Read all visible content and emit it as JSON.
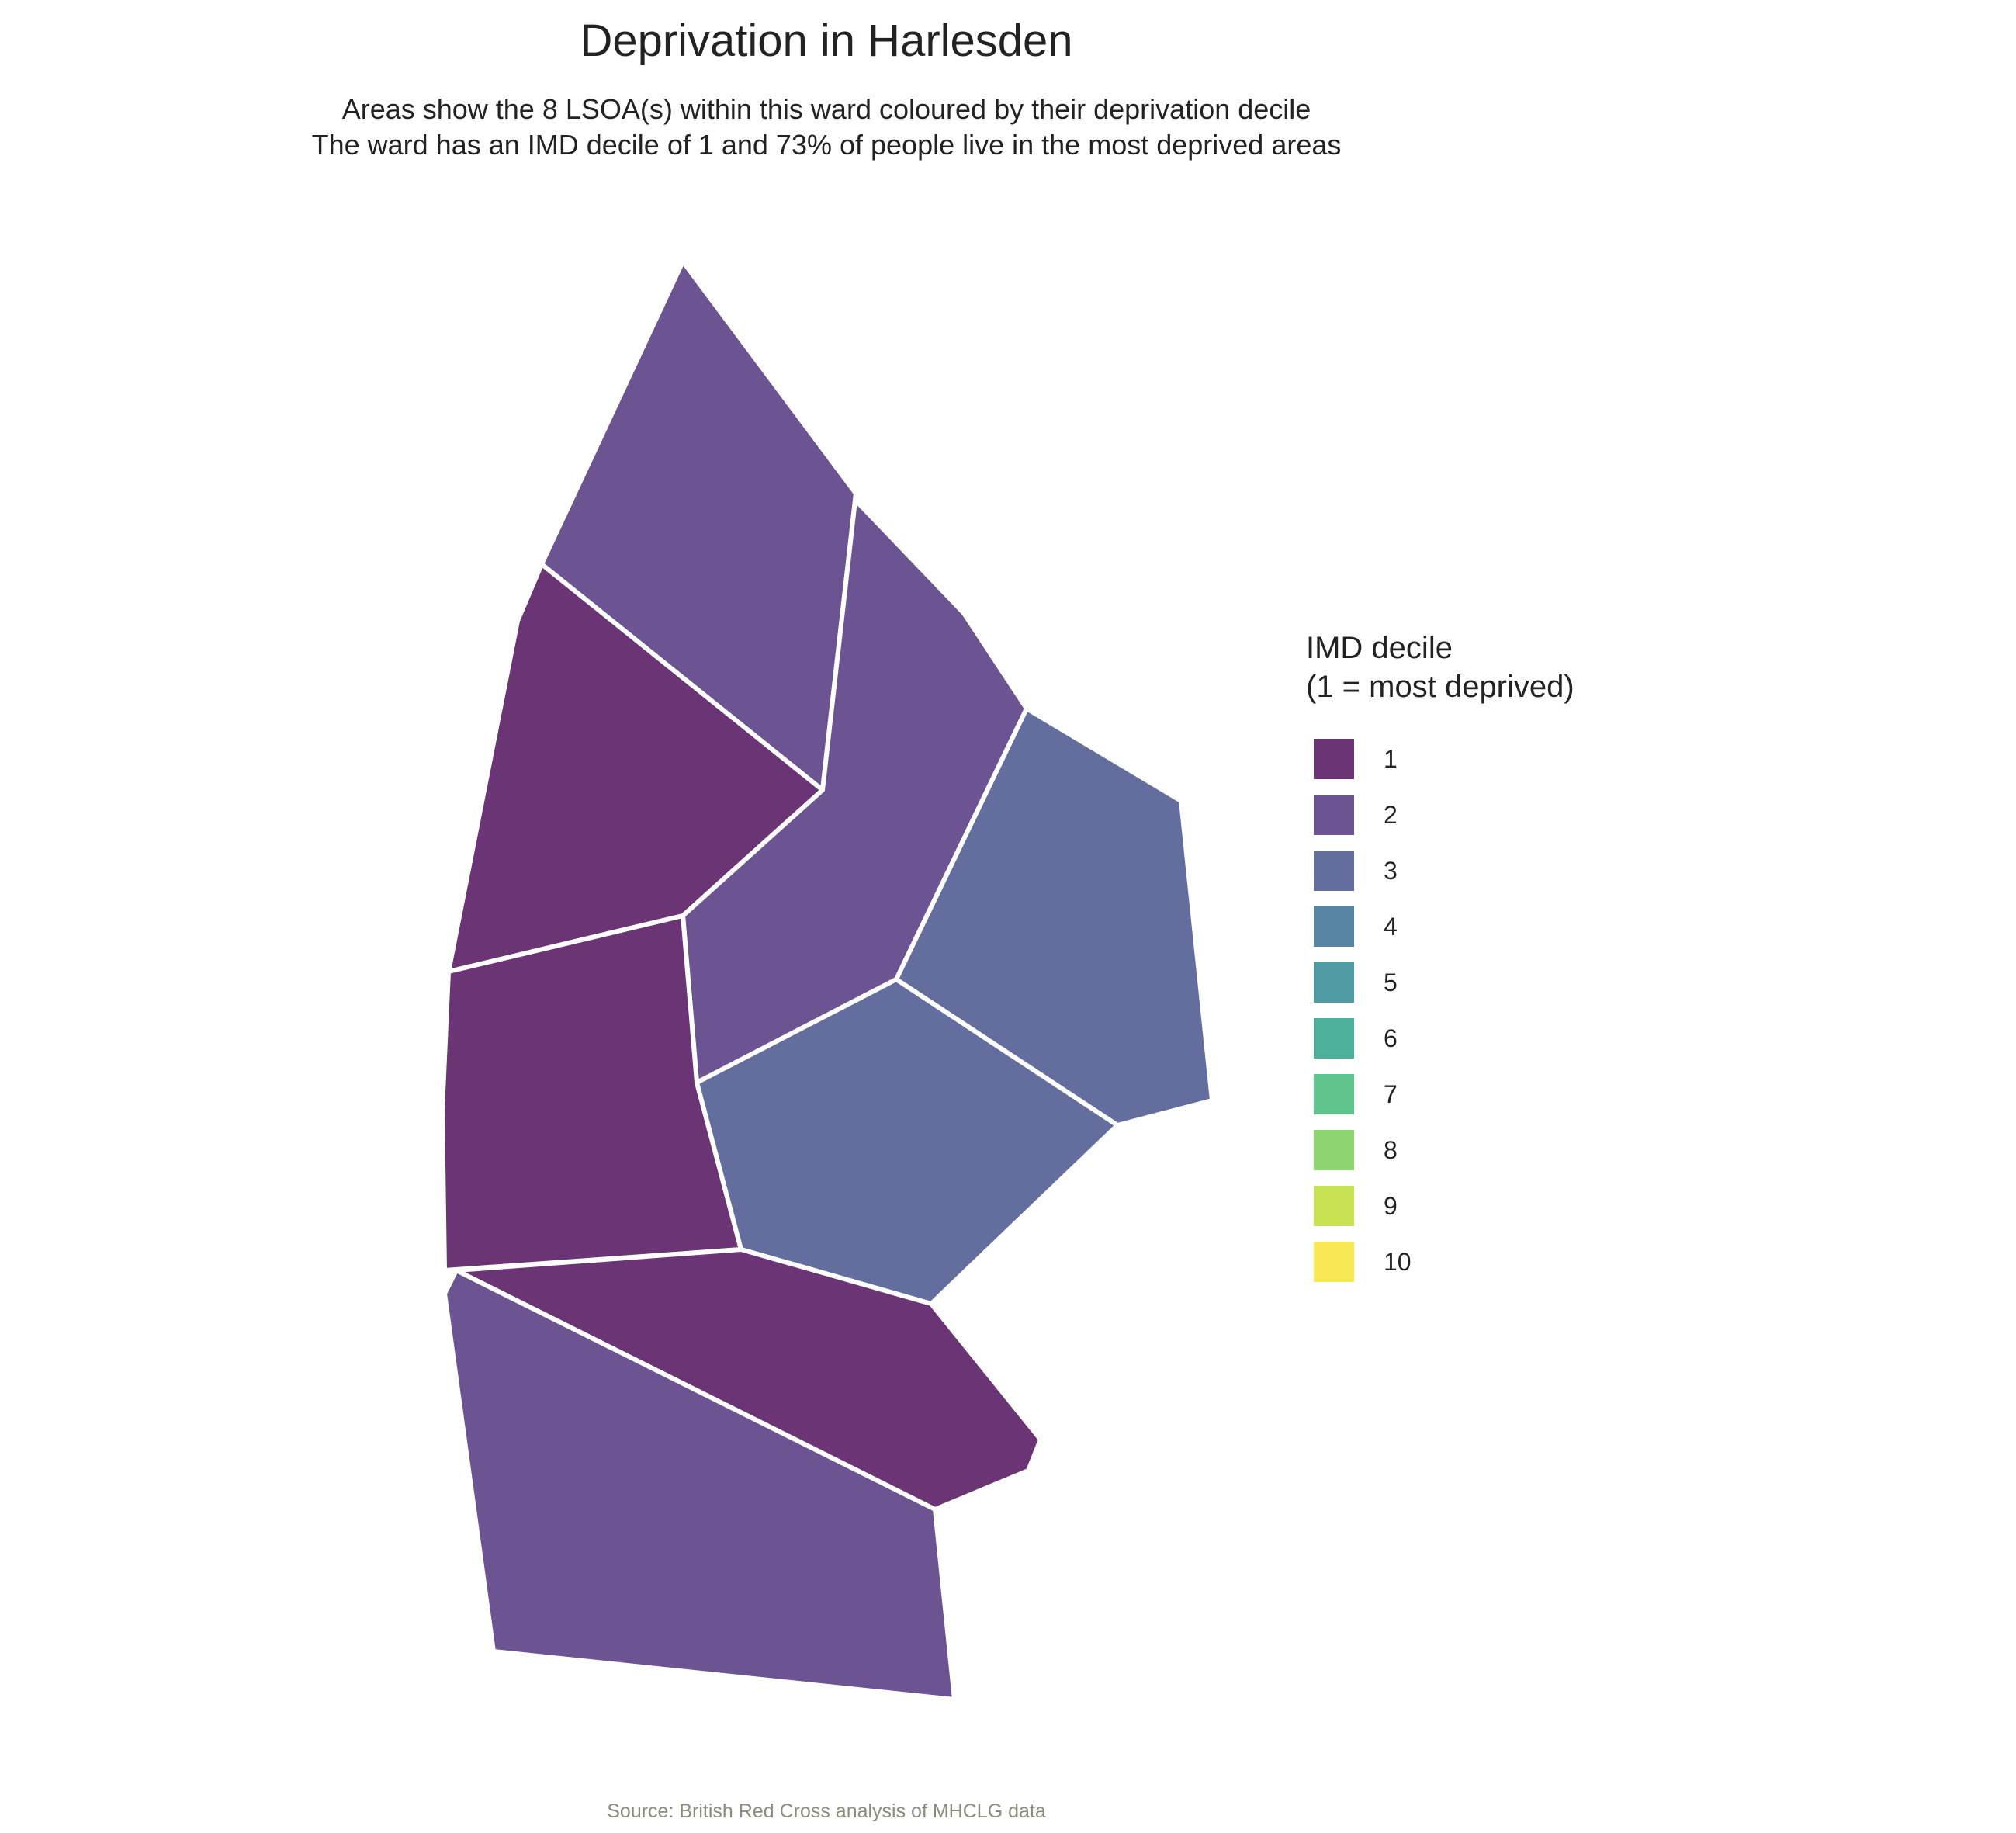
{
  "title": "Deprivation in Harlesden",
  "subtitle": {
    "line1": "Areas show the 8 LSOA(s) within this ward coloured by their deprivation decile",
    "line2": "The ward has an IMD decile of 1 and 73% of people live in the most deprived areas"
  },
  "legend": {
    "title_line1": "IMD decile",
    "title_line2": "(1 = most deprived)",
    "items": [
      {
        "label": "1",
        "color": "#6a3475"
      },
      {
        "label": "2",
        "color": "#6c5392"
      },
      {
        "label": "3",
        "color": "#636e9e"
      },
      {
        "label": "4",
        "color": "#5784a2"
      },
      {
        "label": "5",
        "color": "#4e9ba3"
      },
      {
        "label": "6",
        "color": "#4db19a"
      },
      {
        "label": "7",
        "color": "#5fc48c"
      },
      {
        "label": "8",
        "color": "#8cd56f"
      },
      {
        "label": "9",
        "color": "#c7e353"
      },
      {
        "label": "10",
        "color": "#f8e855"
      }
    ]
  },
  "areas": [
    {
      "decile": 2
    },
    {
      "decile": 1
    },
    {
      "decile": 2
    },
    {
      "decile": 3
    },
    {
      "decile": 1
    },
    {
      "decile": 3
    },
    {
      "decile": 1
    },
    {
      "decile": 2
    }
  ],
  "caption": "Source: British Red Cross analysis of MHCLG data"
}
